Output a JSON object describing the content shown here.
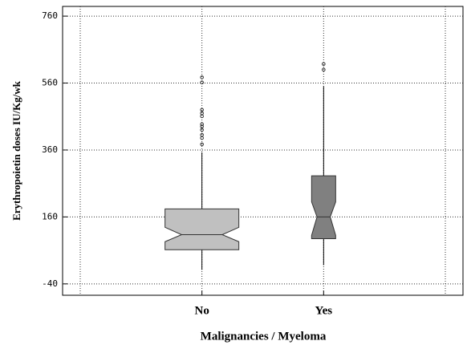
{
  "chart_data": {
    "type": "box",
    "x_label": "Malignancies / Myeloma",
    "y_label": "Erythropoietin doses IU/Kg/wk",
    "categories": [
      "No",
      "Yes"
    ],
    "boxes": [
      {
        "whislo": 2,
        "q1": 62,
        "notch_lo": 86,
        "med": 107,
        "notch_hi": 129,
        "q3": 184,
        "whishi": 353,
        "fliers": [
          377,
          396,
          405,
          420,
          430,
          437,
          461,
          470,
          480,
          562,
          577
        ],
        "color": "#c0c0c0"
      },
      {
        "whislo": 16,
        "q1": 95,
        "notch_lo": 105,
        "med": 160,
        "notch_hi": 205,
        "q3": 283,
        "whishi": 550,
        "fliers": [
          600,
          617
        ],
        "color": "#808080"
      }
    ],
    "ylim": [
      -74,
      789
    ],
    "yticks": [
      -40,
      160,
      360,
      560,
      760
    ],
    "grid": true
  }
}
